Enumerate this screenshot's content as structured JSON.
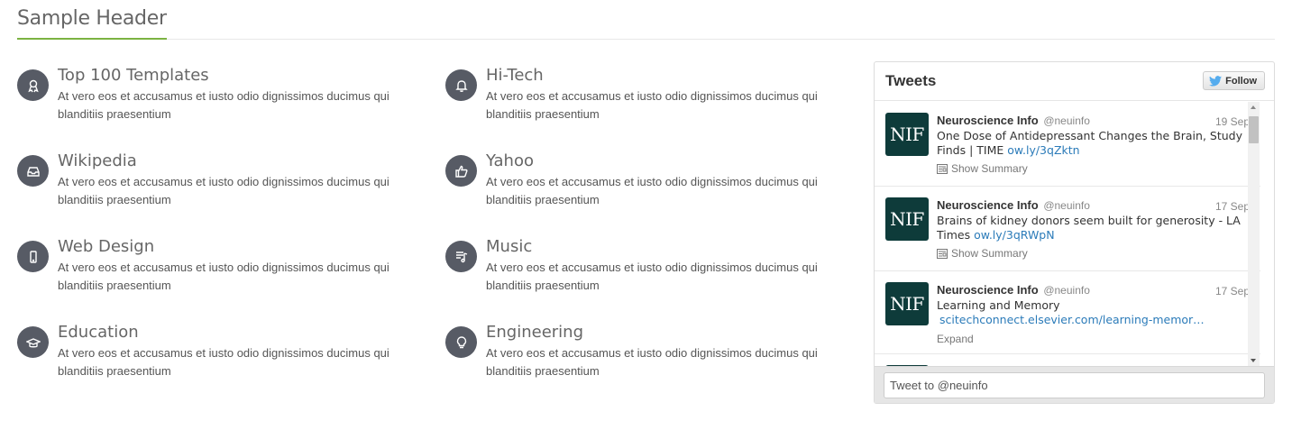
{
  "header": {
    "title": "Sample Header"
  },
  "features": [
    {
      "title": "Top 100 Templates",
      "text": "At vero eos et accusamus et iusto odio dignissimos ducimus qui blanditiis praesentium",
      "icon": "award-icon"
    },
    {
      "title": "Hi-Tech",
      "text": "At vero eos et accusamus et iusto odio dignissimos ducimus qui blanditiis praesentium",
      "icon": "bell-icon"
    },
    {
      "title": "Wikipedia",
      "text": "At vero eos et accusamus et iusto odio dignissimos ducimus qui blanditiis praesentium",
      "icon": "inbox-icon"
    },
    {
      "title": "Yahoo",
      "text": "At vero eos et accusamus et iusto odio dignissimos ducimus qui blanditiis praesentium",
      "icon": "thumbs-up-icon"
    },
    {
      "title": "Web Design",
      "text": "At vero eos et accusamus et iusto odio dignissimos ducimus qui blanditiis praesentium",
      "icon": "mobile-icon"
    },
    {
      "title": "Music",
      "text": "At vero eos et accusamus et iusto odio dignissimos ducimus qui blanditiis praesentium",
      "icon": "playlist-icon"
    },
    {
      "title": "Education",
      "text": "At vero eos et accusamus et iusto odio dignissimos ducimus qui blanditiis praesentium",
      "icon": "graduation-cap-icon"
    },
    {
      "title": "Engineering",
      "text": "At vero eos et accusamus et iusto odio dignissimos ducimus qui blanditiis praesentium",
      "icon": "lightbulb-icon"
    }
  ],
  "tweets_widget": {
    "title": "Tweets",
    "follow_label": "Follow",
    "tweets": [
      {
        "avatar_text": "NIF",
        "name": "Neuroscience Info",
        "handle": "@neuinfo",
        "date": "19 Sep",
        "text": "One Dose of Antidepressant Changes the Brain, Study Finds | TIME",
        "link": "ow.ly/3qZktn",
        "action": "Show Summary"
      },
      {
        "avatar_text": "NIF",
        "name": "Neuroscience Info",
        "handle": "@neuinfo",
        "date": "17 Sep",
        "text": "Brains of kidney donors seem built for generosity - LA Times",
        "link": "ow.ly/3qRWpN",
        "action": "Show Summary"
      },
      {
        "avatar_text": "NIF",
        "name": "Neuroscience Info",
        "handle": "@neuinfo",
        "date": "17 Sep",
        "text": "Learning and Memory",
        "link": "scitechconnect.elsevier.com/learning-memor…",
        "action": "Expand"
      }
    ],
    "compose_placeholder": "Tweet to @neuinfo"
  },
  "colors": {
    "accent": "#7cb342",
    "icon_bg": "#575b65",
    "link": "#2b7bb9",
    "avatar_bg": "#0e3b3a"
  }
}
